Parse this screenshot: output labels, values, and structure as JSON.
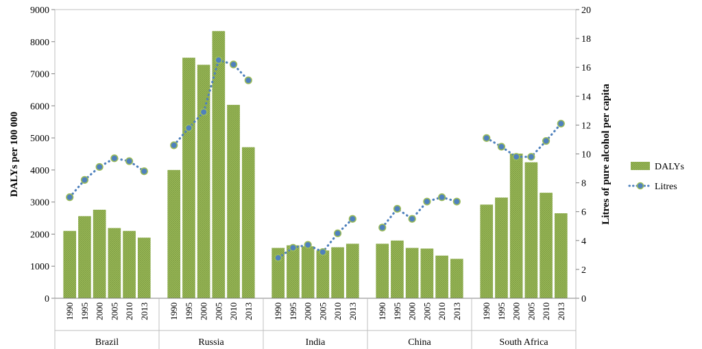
{
  "chart_data": {
    "type": "bar",
    "title": "",
    "groups": [
      "Brazil",
      "Russia",
      "India",
      "China",
      "South Africa"
    ],
    "years": [
      "1990",
      "1995",
      "2000",
      "2005",
      "2010",
      "2013"
    ],
    "y_left": {
      "label": "DALYs per 100 000",
      "min": 0,
      "max": 9000,
      "step": 1000,
      "ticks": [
        "0",
        "1000",
        "2000",
        "3000",
        "4000",
        "5000",
        "6000",
        "7000",
        "8000",
        "9000"
      ]
    },
    "y_right": {
      "label": "Litres of pure alcohol per capita",
      "min": 0,
      "max": 20,
      "step": 2,
      "ticks": [
        "0",
        "2",
        "4",
        "6",
        "8",
        "10",
        "12",
        "14",
        "16",
        "18",
        "20"
      ]
    },
    "series": [
      {
        "name": "DALYs",
        "kind": "bar",
        "axis": "left",
        "color": "#9bbb59",
        "values": [
          [
            2100,
            2560,
            2760,
            2190,
            2100,
            1890
          ],
          [
            4000,
            7500,
            7280,
            8330,
            6030,
            4710
          ],
          [
            1570,
            1650,
            1620,
            1490,
            1590,
            1700
          ],
          [
            1700,
            1800,
            1570,
            1550,
            1330,
            1230
          ],
          [
            2920,
            3140,
            4510,
            4240,
            3290,
            2650
          ]
        ]
      },
      {
        "name": "Litres",
        "kind": "line",
        "axis": "right",
        "color": "#4f81bd",
        "values": [
          [
            7.0,
            8.2,
            9.1,
            9.7,
            9.5,
            8.8
          ],
          [
            10.6,
            11.8,
            12.9,
            16.5,
            16.2,
            15.1
          ],
          [
            2.8,
            3.5,
            3.7,
            3.2,
            4.5,
            5.5
          ],
          [
            4.9,
            6.2,
            5.5,
            6.7,
            7.0,
            6.7
          ],
          [
            11.1,
            10.5,
            9.8,
            9.8,
            10.9,
            12.1
          ]
        ]
      }
    ],
    "grid": false,
    "legend_position": "right"
  }
}
